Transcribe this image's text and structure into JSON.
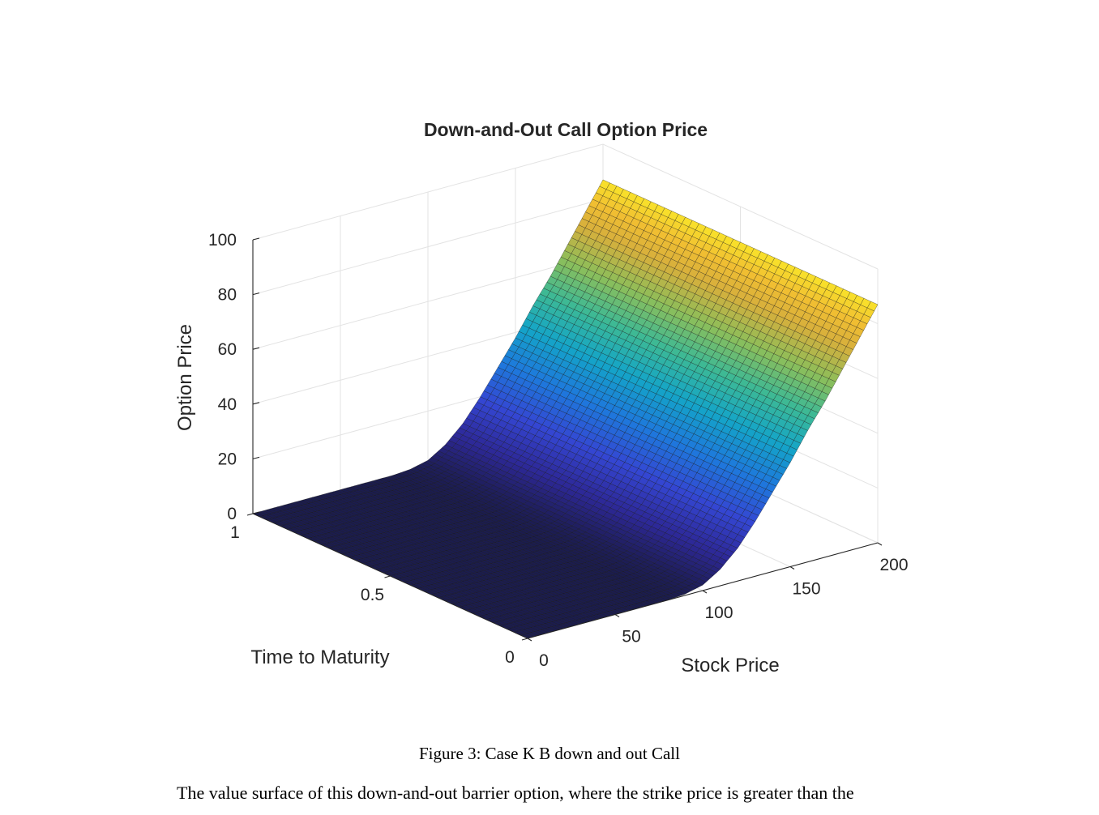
{
  "chart_data": {
    "type": "surface",
    "title": "Down-and-Out Call Option Price",
    "xlabel": "Stock Price",
    "ylabel": "Time to Maturity",
    "zlabel": "Option Price",
    "xlim": [
      0,
      200
    ],
    "ylim": [
      0,
      1
    ],
    "zlim": [
      0,
      100
    ],
    "x_ticks": [
      "0",
      "50",
      "100",
      "150",
      "200"
    ],
    "x_tick_values": [
      0,
      50,
      100,
      150,
      200
    ],
    "y_ticks": [
      "0",
      "0.5",
      "1"
    ],
    "y_tick_values": [
      0,
      0.5,
      1
    ],
    "z_ticks": [
      "0",
      "20",
      "40",
      "60",
      "80",
      "100"
    ],
    "z_tick_values": [
      0,
      20,
      40,
      60,
      80,
      100
    ],
    "grid": true,
    "colormap": "parula",
    "surface_profile": {
      "description_values": "option price vs stock price (constant across time to maturity)",
      "x": [
        0,
        80,
        90,
        100,
        110,
        120,
        130,
        140,
        150,
        160,
        170,
        180,
        190,
        200
      ],
      "z": [
        0,
        0,
        0.5,
        2,
        6,
        12,
        20,
        29,
        38,
        48,
        57,
        67,
        77,
        87
      ]
    },
    "colors": {
      "low": "#1b1c4e",
      "high": "#f9e32a"
    }
  },
  "caption": "Figure 3: Case K   B down and out Call",
  "body_text": "The value surface of this down-and-out barrier option, where the strike price is greater than the"
}
